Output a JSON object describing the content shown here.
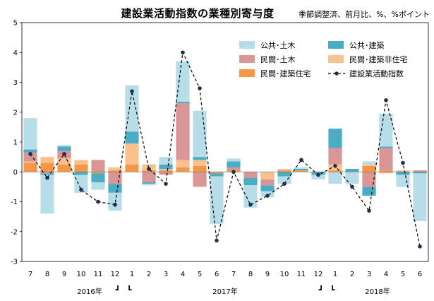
{
  "chart_data": {
    "type": "bar",
    "title": "建設業活動指数の業種別寄与度",
    "note": "季節調整済、前月比、%、%ポイント",
    "ylim": [
      -3,
      5
    ],
    "yticks": [
      -3,
      -2,
      -1,
      0,
      1,
      2,
      3,
      4,
      5
    ],
    "categories": [
      "7",
      "8",
      "9",
      "10",
      "11",
      "12",
      "1",
      "2",
      "3",
      "4",
      "5",
      "6",
      "7",
      "8",
      "9",
      "10",
      "11",
      "12",
      "1",
      "2",
      "3",
      "4",
      "5",
      "6"
    ],
    "years": [
      {
        "label": "2016年",
        "at": 3.5
      },
      {
        "label": "2017年",
        "at": 11.5
      },
      {
        "label": "2018年",
        "at": 20.5
      }
    ],
    "year_separator_glyphs": [
      {
        "glyph": "┛",
        "after": 5
      },
      {
        "glyph": "┗",
        "after": 5
      },
      {
        "glyph": "┛",
        "after": 17
      },
      {
        "glyph": "┗",
        "after": 17
      }
    ],
    "series": [
      {
        "name": "民間･建築住宅",
        "color": "#f79646",
        "values": [
          0.3,
          0.3,
          0.25,
          0.25,
          -0.05,
          0.05,
          0.25,
          0.05,
          0.05,
          0.15,
          0.2,
          -0.05,
          0.05,
          0.0,
          0.0,
          0.05,
          0.05,
          0.0,
          0.05,
          0.0,
          0.2,
          0.05,
          0.0,
          0.0
        ]
      },
      {
        "name": "民間･建築非住宅",
        "color": "#fac090",
        "values": [
          0.05,
          0.2,
          0.2,
          0.15,
          0.0,
          0.1,
          0.7,
          0.2,
          0.05,
          0.25,
          0.2,
          0.0,
          0.0,
          0.0,
          -0.25,
          0.05,
          0.0,
          0.0,
          0.2,
          0.0,
          0.05,
          -0.05,
          0.05,
          0.0
        ]
      },
      {
        "name": "民間･土木",
        "color": "#d99694",
        "values": [
          0.3,
          -0.05,
          0.25,
          0.0,
          0.4,
          -0.4,
          0.0,
          -0.35,
          -0.1,
          1.9,
          -0.5,
          0.0,
          0.1,
          -0.2,
          -0.2,
          0.0,
          0.0,
          0.0,
          0.55,
          0.0,
          -0.5,
          0.75,
          0.0,
          0.05
        ]
      },
      {
        "name": "公共･建築",
        "color": "#4bacc6",
        "values": [
          0.1,
          -0.05,
          0.15,
          -0.1,
          -0.3,
          -0.3,
          0.4,
          -0.05,
          0.15,
          0.05,
          0.1,
          -0.1,
          0.2,
          -0.25,
          -0.2,
          -0.15,
          0.05,
          -0.1,
          0.65,
          0.1,
          -0.3,
          0.05,
          -0.1,
          -0.05
        ]
      },
      {
        "name": "公共･土木",
        "color": "#b7dee8",
        "values": [
          1.05,
          -1.3,
          0.05,
          -0.6,
          -0.25,
          -0.6,
          1.55,
          -0.05,
          0.25,
          1.35,
          1.55,
          -1.6,
          0.1,
          -0.75,
          -0.2,
          -0.25,
          0.05,
          -0.15,
          -0.4,
          -0.4,
          0.1,
          1.1,
          -0.4,
          -1.6
        ]
      }
    ],
    "line": {
      "name": "建設業活動指数",
      "values": [
        0.6,
        -0.2,
        0.6,
        -0.6,
        -1.0,
        -1.1,
        2.7,
        0.1,
        -0.4,
        4.0,
        2.8,
        -2.3,
        0.0,
        -1.1,
        -0.8,
        -0.4,
        0.4,
        -0.1,
        0.2,
        -0.5,
        -1.3,
        2.4,
        0.3,
        -2.5
      ]
    },
    "legend": [
      {
        "name": "公共･土木",
        "kind": "box",
        "color": "#b7dee8"
      },
      {
        "name": "公共･建築",
        "kind": "box",
        "color": "#4bacc6"
      },
      {
        "name": "民間･土木",
        "kind": "box",
        "color": "#d99694"
      },
      {
        "name": "民間･建築非住宅",
        "kind": "box",
        "color": "#fac090"
      },
      {
        "name": "民間･建築住宅",
        "kind": "box",
        "color": "#f79646"
      },
      {
        "name": "建設業活動指数",
        "kind": "line",
        "color": "#000000"
      }
    ]
  }
}
